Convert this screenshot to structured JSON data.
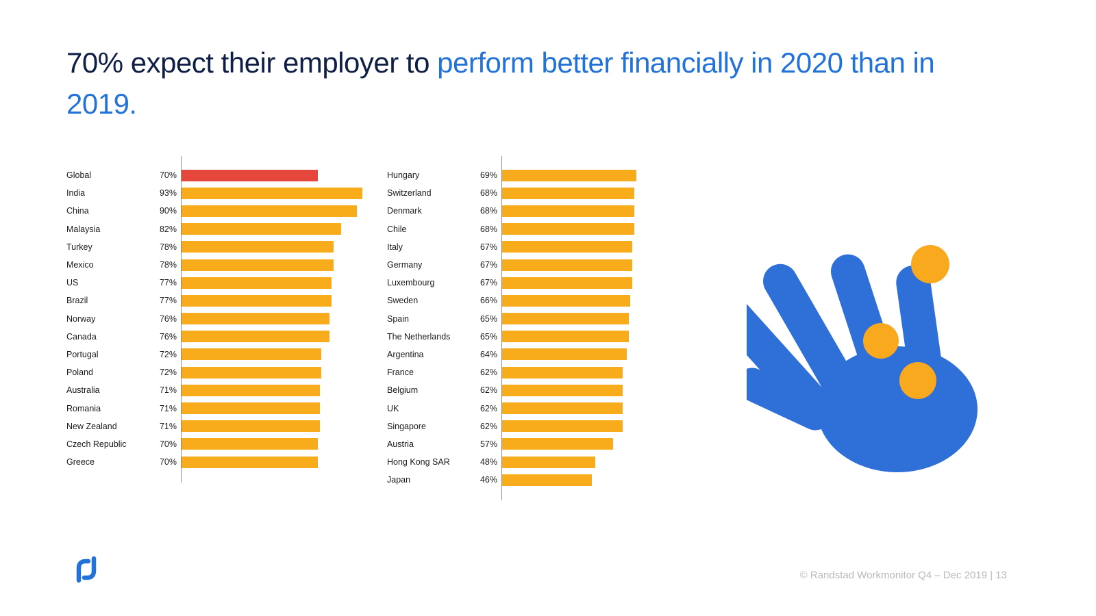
{
  "title": {
    "part_dark": "70% expect their employer to ",
    "part_accent": "perform better financially in 2020 than in 2019."
  },
  "footer": {
    "text": "© Randstad Workmonitor Q4 – Dec 2019 |  13"
  },
  "logo": {
    "name": "randstad-logo"
  },
  "colors": {
    "title_dark": "#101f45",
    "title_accent": "#2272d8",
    "bar": "#f8ac1c",
    "bar_highlight": "#e5473d",
    "axis": "#8c8c8c",
    "label_text": "#1a1a1a",
    "footer_text": "#b9b9b9",
    "hand_blue": "#2e6fd8",
    "coin_orange": "#f8a91d",
    "logo_blue": "#2272d8"
  },
  "chart_data": {
    "type": "bar",
    "orientation": "horizontal",
    "value_unit": "%",
    "value_range": [
      0,
      100
    ],
    "legend_position": "none",
    "grid": false,
    "highlighted_category": "Global",
    "columns": [
      {
        "rows": [
          {
            "label": "Global",
            "value": 70,
            "highlight": true
          },
          {
            "label": "India",
            "value": 93
          },
          {
            "label": "China",
            "value": 90
          },
          {
            "label": "Malaysia",
            "value": 82
          },
          {
            "label": "Turkey",
            "value": 78
          },
          {
            "label": "Mexico",
            "value": 78
          },
          {
            "label": "US",
            "value": 77
          },
          {
            "label": "Brazil",
            "value": 77
          },
          {
            "label": "Norway",
            "value": 76
          },
          {
            "label": "Canada",
            "value": 76
          },
          {
            "label": "Portugal",
            "value": 72
          },
          {
            "label": "Poland",
            "value": 72
          },
          {
            "label": "Australia",
            "value": 71
          },
          {
            "label": "Romania",
            "value": 71
          },
          {
            "label": "New Zealand",
            "value": 71
          },
          {
            "label": "Czech Republic",
            "value": 70
          },
          {
            "label": "Greece",
            "value": 70
          }
        ]
      },
      {
        "rows": [
          {
            "label": "Hungary",
            "value": 69
          },
          {
            "label": "Switzerland",
            "value": 68
          },
          {
            "label": "Denmark",
            "value": 68
          },
          {
            "label": "Chile",
            "value": 68
          },
          {
            "label": "Italy",
            "value": 67
          },
          {
            "label": "Germany",
            "value": 67
          },
          {
            "label": "Luxembourg",
            "value": 67
          },
          {
            "label": "Sweden",
            "value": 66
          },
          {
            "label": "Spain",
            "value": 65
          },
          {
            "label": "The Netherlands",
            "value": 65
          },
          {
            "label": "Argentina",
            "value": 64
          },
          {
            "label": "France",
            "value": 62
          },
          {
            "label": "Belgium",
            "value": 62
          },
          {
            "label": "UK",
            "value": 62
          },
          {
            "label": "Singapore",
            "value": 62
          },
          {
            "label": "Austria",
            "value": 57
          },
          {
            "label": "Hong Kong SAR",
            "value": 48
          },
          {
            "label": "Japan",
            "value": 46
          }
        ]
      }
    ]
  }
}
